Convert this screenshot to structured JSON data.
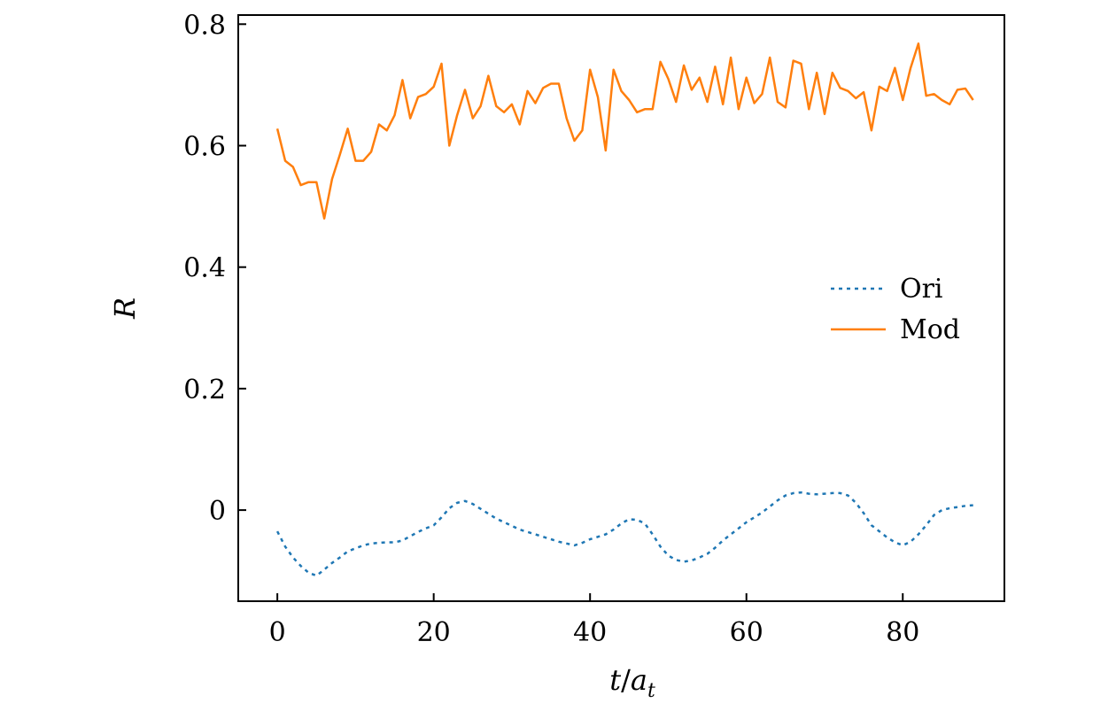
{
  "chart_data": {
    "type": "line",
    "title": "",
    "xlabel_main": "t",
    "xlabel_sep": "/",
    "xlabel_sym": "a",
    "xlabel_sub": "t",
    "ylabel": "R",
    "xlim": [
      -5,
      93
    ],
    "ylim": [
      -0.15,
      0.815
    ],
    "xticks": [
      0,
      20,
      40,
      60,
      80
    ],
    "xtick_labels": [
      "0",
      "20",
      "40",
      "60",
      "80"
    ],
    "yticks": [
      0,
      0.2,
      0.4,
      0.6,
      0.8
    ],
    "ytick_labels": [
      "0",
      "0.2",
      "0.4",
      "0.6",
      "0.8"
    ],
    "grid": false,
    "legend_position": "right",
    "series": [
      {
        "name": "Ori",
        "color": "#1f77b4",
        "style": "dotted",
        "x": [
          0,
          1,
          2,
          3,
          4,
          5,
          6,
          7,
          8,
          9,
          10,
          11,
          12,
          13,
          14,
          15,
          16,
          17,
          18,
          19,
          20,
          21,
          22,
          23,
          24,
          25,
          26,
          27,
          28,
          29,
          30,
          31,
          32,
          33,
          34,
          35,
          36,
          37,
          38,
          39,
          40,
          41,
          42,
          43,
          44,
          45,
          46,
          47,
          48,
          49,
          50,
          51,
          52,
          53,
          54,
          55,
          56,
          57,
          58,
          59,
          60,
          61,
          62,
          63,
          64,
          65,
          66,
          67,
          68,
          69,
          70,
          71,
          72,
          73,
          74,
          75,
          76,
          77,
          78,
          79,
          80,
          81,
          82,
          83,
          84,
          85,
          86,
          87,
          88,
          89
        ],
        "y": [
          -0.035,
          -0.06,
          -0.078,
          -0.092,
          -0.103,
          -0.108,
          -0.098,
          -0.087,
          -0.078,
          -0.068,
          -0.063,
          -0.058,
          -0.055,
          -0.054,
          -0.053,
          -0.053,
          -0.05,
          -0.043,
          -0.036,
          -0.03,
          -0.025,
          -0.012,
          0.003,
          0.012,
          0.015,
          0.01,
          0.002,
          -0.006,
          -0.014,
          -0.02,
          -0.026,
          -0.032,
          -0.036,
          -0.04,
          -0.044,
          -0.048,
          -0.052,
          -0.055,
          -0.058,
          -0.054,
          -0.048,
          -0.044,
          -0.04,
          -0.032,
          -0.022,
          -0.015,
          -0.016,
          -0.022,
          -0.04,
          -0.06,
          -0.075,
          -0.082,
          -0.085,
          -0.083,
          -0.078,
          -0.072,
          -0.062,
          -0.05,
          -0.04,
          -0.03,
          -0.02,
          -0.012,
          -0.004,
          0.006,
          0.016,
          0.024,
          0.028,
          0.029,
          0.027,
          0.026,
          0.027,
          0.028,
          0.028,
          0.024,
          0.012,
          -0.005,
          -0.025,
          -0.035,
          -0.045,
          -0.053,
          -0.058,
          -0.052,
          -0.04,
          -0.025,
          -0.008,
          0.0,
          0.003,
          0.005,
          0.007,
          0.008
        ]
      },
      {
        "name": "Mod",
        "color": "#ff7f0e",
        "style": "solid",
        "x": [
          0,
          1,
          2,
          3,
          4,
          5,
          6,
          7,
          8,
          9,
          10,
          11,
          12,
          13,
          14,
          15,
          16,
          17,
          18,
          19,
          20,
          21,
          22,
          23,
          24,
          25,
          26,
          27,
          28,
          29,
          30,
          31,
          32,
          33,
          34,
          35,
          36,
          37,
          38,
          39,
          40,
          41,
          42,
          43,
          44,
          45,
          46,
          47,
          48,
          49,
          50,
          51,
          52,
          53,
          54,
          55,
          56,
          57,
          58,
          59,
          60,
          61,
          62,
          63,
          64,
          65,
          66,
          67,
          68,
          69,
          70,
          71,
          72,
          73,
          74,
          75,
          76,
          77,
          78,
          79,
          80,
          81,
          82,
          83,
          84,
          85,
          86,
          87,
          88,
          89
        ],
        "y": [
          0.628,
          0.575,
          0.565,
          0.535,
          0.54,
          0.54,
          0.48,
          0.545,
          0.585,
          0.628,
          0.575,
          0.575,
          0.59,
          0.635,
          0.625,
          0.65,
          0.708,
          0.645,
          0.68,
          0.685,
          0.697,
          0.735,
          0.6,
          0.65,
          0.692,
          0.645,
          0.665,
          0.715,
          0.665,
          0.655,
          0.668,
          0.635,
          0.69,
          0.67,
          0.695,
          0.702,
          0.702,
          0.645,
          0.608,
          0.625,
          0.725,
          0.68,
          0.592,
          0.725,
          0.69,
          0.675,
          0.655,
          0.66,
          0.66,
          0.738,
          0.71,
          0.672,
          0.732,
          0.692,
          0.712,
          0.672,
          0.73,
          0.668,
          0.745,
          0.66,
          0.712,
          0.67,
          0.685,
          0.745,
          0.672,
          0.663,
          0.74,
          0.735,
          0.66,
          0.72,
          0.652,
          0.72,
          0.695,
          0.69,
          0.678,
          0.688,
          0.625,
          0.697,
          0.69,
          0.728,
          0.675,
          0.728,
          0.768,
          0.682,
          0.685,
          0.675,
          0.668,
          0.692,
          0.694,
          0.675
        ]
      }
    ]
  }
}
